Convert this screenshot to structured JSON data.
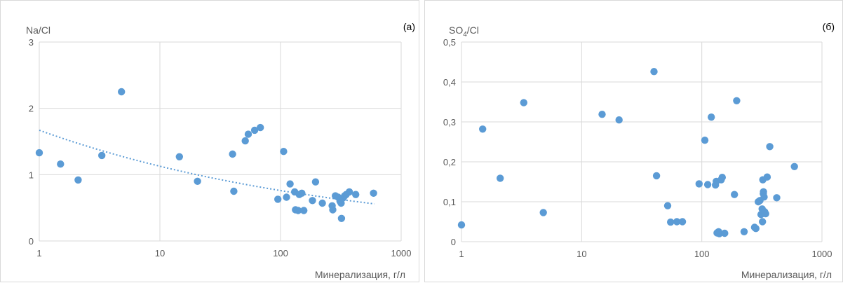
{
  "chart_data": [
    {
      "type": "scatter",
      "panel_label": "(а)",
      "xlabel": "Минерализация, г/л",
      "ylabel": "Na/Cl",
      "x_scale": "log",
      "xlim": [
        1,
        1000
      ],
      "ylim": [
        0,
        3
      ],
      "x_ticks": [
        "1",
        "10",
        "100",
        "1000"
      ],
      "y_ticks": [
        "0",
        "1",
        "2",
        "3"
      ],
      "grid": true,
      "marker_color": "#5b9bd5",
      "trendline": {
        "type": "power",
        "style": "dotted",
        "x": [
          1,
          600
        ],
        "y": [
          1.67,
          0.56
        ]
      },
      "points": [
        [
          1.0,
          1.33
        ],
        [
          1.5,
          1.16
        ],
        [
          2.1,
          0.92
        ],
        [
          3.3,
          1.29
        ],
        [
          4.8,
          2.25
        ],
        [
          14.5,
          1.27
        ],
        [
          20.5,
          0.9
        ],
        [
          40,
          1.31
        ],
        [
          41,
          0.75
        ],
        [
          51,
          1.51
        ],
        [
          54,
          1.61
        ],
        [
          61,
          1.67
        ],
        [
          68,
          1.71
        ],
        [
          95,
          0.63
        ],
        [
          106,
          1.35
        ],
        [
          112,
          0.66
        ],
        [
          120,
          0.86
        ],
        [
          131,
          0.74
        ],
        [
          133,
          0.47
        ],
        [
          140,
          0.46
        ],
        [
          143,
          0.7
        ],
        [
          150,
          0.72
        ],
        [
          156,
          0.46
        ],
        [
          184,
          0.61
        ],
        [
          195,
          0.89
        ],
        [
          222,
          0.57
        ],
        [
          268,
          0.53
        ],
        [
          271,
          0.47
        ],
        [
          285,
          0.68
        ],
        [
          300,
          0.66
        ],
        [
          311,
          0.6
        ],
        [
          318,
          0.57
        ],
        [
          320,
          0.34
        ],
        [
          330,
          0.65
        ],
        [
          340,
          0.68
        ],
        [
          350,
          0.7
        ],
        [
          372,
          0.74
        ],
        [
          420,
          0.7
        ],
        [
          590,
          0.72
        ]
      ]
    },
    {
      "type": "scatter",
      "panel_label": "(б)",
      "xlabel": "Минерализация, г/л",
      "ylabel_main": "SO",
      "ylabel_sub": "4",
      "ylabel_tail": "/Cl",
      "x_scale": "log",
      "xlim": [
        1,
        1000
      ],
      "ylim": [
        0,
        0.5
      ],
      "x_ticks": [
        "1",
        "10",
        "100",
        "1000"
      ],
      "y_ticks": [
        "0",
        "0,1",
        "0,2",
        "0,3",
        "0,4",
        "0,5"
      ],
      "grid": true,
      "marker_color": "#5b9bd5",
      "points": [
        [
          1.0,
          0.042
        ],
        [
          1.5,
          0.282
        ],
        [
          2.1,
          0.159
        ],
        [
          3.3,
          0.348
        ],
        [
          4.8,
          0.073
        ],
        [
          14.8,
          0.319
        ],
        [
          20.5,
          0.305
        ],
        [
          40,
          0.426
        ],
        [
          42,
          0.165
        ],
        [
          52,
          0.09
        ],
        [
          55,
          0.049
        ],
        [
          62,
          0.05
        ],
        [
          69,
          0.05
        ],
        [
          95,
          0.145
        ],
        [
          106,
          0.254
        ],
        [
          112,
          0.143
        ],
        [
          120,
          0.312
        ],
        [
          130,
          0.142
        ],
        [
          132,
          0.151
        ],
        [
          134,
          0.022
        ],
        [
          138,
          0.025
        ],
        [
          140,
          0.02
        ],
        [
          145,
          0.155
        ],
        [
          148,
          0.161
        ],
        [
          155,
          0.021
        ],
        [
          187,
          0.118
        ],
        [
          195,
          0.353
        ],
        [
          225,
          0.025
        ],
        [
          275,
          0.036
        ],
        [
          282,
          0.033
        ],
        [
          295,
          0.1
        ],
        [
          305,
          0.103
        ],
        [
          311,
          0.068
        ],
        [
          318,
          0.082
        ],
        [
          320,
          0.05
        ],
        [
          322,
          0.155
        ],
        [
          325,
          0.12
        ],
        [
          326,
          0.125
        ],
        [
          330,
          0.112
        ],
        [
          333,
          0.075
        ],
        [
          340,
          0.07
        ],
        [
          350,
          0.162
        ],
        [
          368,
          0.238
        ],
        [
          420,
          0.11
        ],
        [
          590,
          0.188
        ]
      ]
    }
  ]
}
